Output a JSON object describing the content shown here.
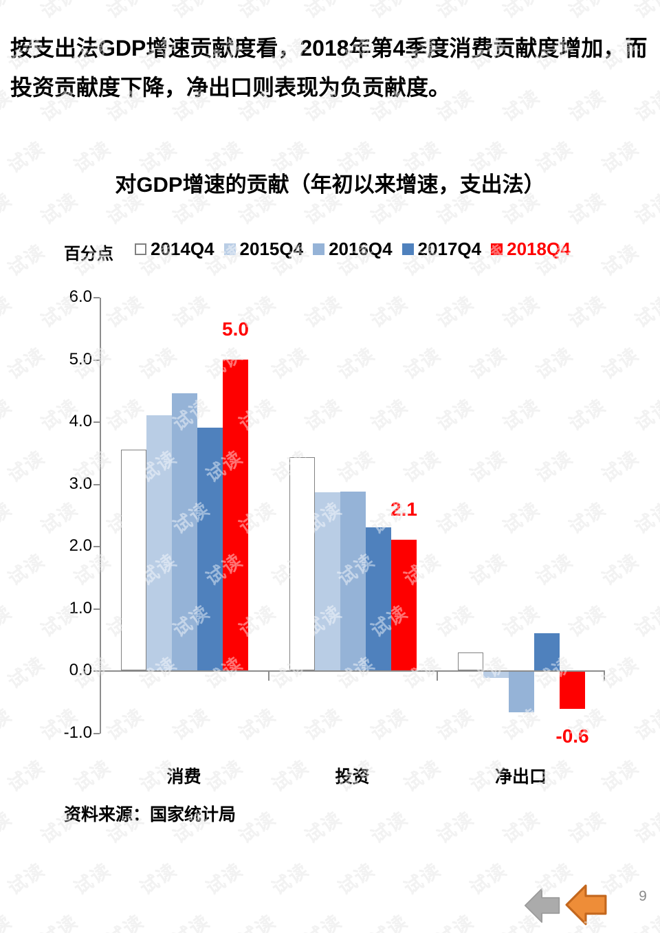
{
  "page": {
    "header": "按支出法GDP增速贡献度看，2018年第4季度消费贡献度增加，而投资贡献度下降，净出口则表现为负贡献度。",
    "source": "资料来源：国家统计局",
    "page_number": "9",
    "watermark_text": "试读"
  },
  "chart_data": {
    "type": "bar",
    "title": "对GDP增速的贡献（年初以来增速，支出法）",
    "ylabel": "百分点",
    "xlabel": "",
    "categories": [
      "消费",
      "投资",
      "净出口"
    ],
    "series": [
      {
        "name": "2014Q4",
        "color": "#ffffff",
        "border": "#808080",
        "text_color": "#000000",
        "values": [
          3.55,
          3.43,
          0.29
        ]
      },
      {
        "name": "2015Q4",
        "color": "#b9cde5",
        "text_color": "#000000",
        "values": [
          4.1,
          2.86,
          -0.1
        ]
      },
      {
        "name": "2016Q4",
        "color": "#95b3d7",
        "text_color": "#000000",
        "values": [
          4.45,
          2.87,
          -0.65
        ]
      },
      {
        "name": "2017Q4",
        "color": "#4f81bd",
        "text_color": "#000000",
        "values": [
          3.9,
          2.3,
          0.6
        ]
      },
      {
        "name": "2018Q4",
        "color": "#fe0000",
        "text_color": "#ff0000",
        "values": [
          5.0,
          2.1,
          -0.6
        ],
        "data_labels": [
          "5.0",
          "2.1",
          "-0.6"
        ]
      }
    ],
    "ylim": [
      -1.0,
      6.0
    ],
    "yticks": [
      "6.0",
      "5.0",
      "4.0",
      "3.0",
      "2.0",
      "1.0",
      "0.0",
      "-1.0"
    ],
    "grid": false,
    "legend_position": "top",
    "axis_color": "#8c8c8c"
  },
  "nav": {
    "gray_arrow": {
      "fill": "#ababab",
      "stroke": "#9b9b9b"
    },
    "orange_arrow": {
      "fill": "#ee8d38",
      "stroke": "#c3671d"
    }
  }
}
